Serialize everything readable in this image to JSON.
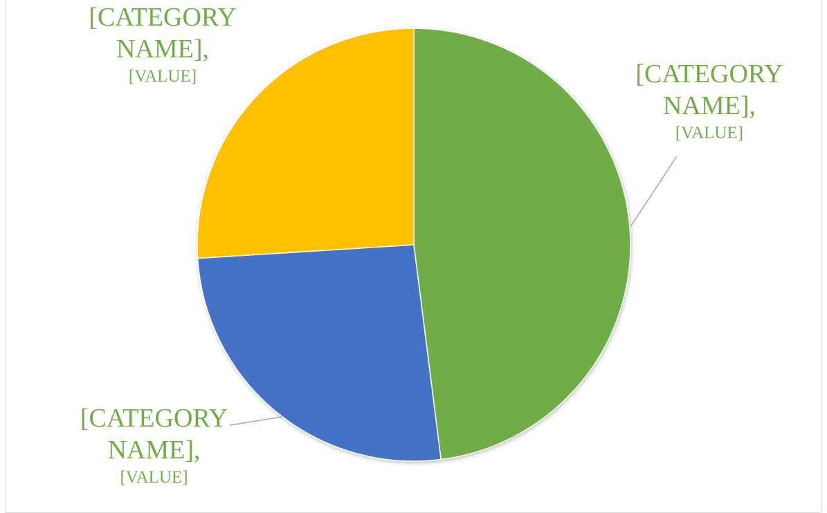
{
  "chart_data": {
    "type": "pie",
    "title": "",
    "slices": [
      {
        "label": "[CATEGORY NAME]",
        "value_label": "[VALUE]",
        "value": 48,
        "color": "#70ad47"
      },
      {
        "label": "[CATEGORY NAME]",
        "value_label": "[VALUE]",
        "value": 26,
        "color": "#4472c4"
      },
      {
        "label": "[CATEGORY NAME]",
        "value_label": "[VALUE]",
        "value": 26,
        "color": "#ffc000"
      }
    ],
    "start_angle_deg": 0,
    "direction": "clockwise",
    "legend": "none",
    "data_labels": "outside-with-leader-lines",
    "label_color": "#70ad47"
  },
  "labels": {
    "right": {
      "line1": "[CATEGORY",
      "line2": "NAME],",
      "value": "[VALUE]"
    },
    "bottom_left": {
      "line1": "[CATEGORY",
      "line2": "NAME],",
      "value": "[VALUE]"
    },
    "top_left": {
      "line1": "[CATEGORY",
      "line2": "NAME],",
      "value": "[VALUE]"
    }
  }
}
